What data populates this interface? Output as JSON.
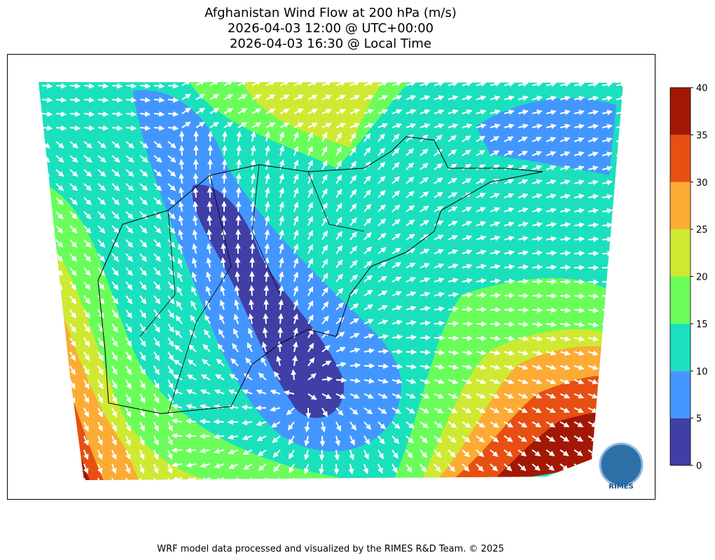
{
  "title": [
    "Afghanistan Wind Flow at 200 hPa (m/s)",
    "2026-04-03 12:00 @ UTC+00:00",
    "2026-04-03 16:30 @ Local Time"
  ],
  "colorbar": {
    "ticks": [
      0,
      5,
      10,
      15,
      20,
      25,
      30,
      35,
      40
    ],
    "colors": [
      "#3f3fa6",
      "#4496ff",
      "#1be0bd",
      "#6afd5a",
      "#cfe933",
      "#fcab35",
      "#e84f12",
      "#a21805"
    ]
  },
  "logo": "RIMES",
  "footer": "WRF model data processed and visualized by the RIMES R&D Team. © 2025"
}
